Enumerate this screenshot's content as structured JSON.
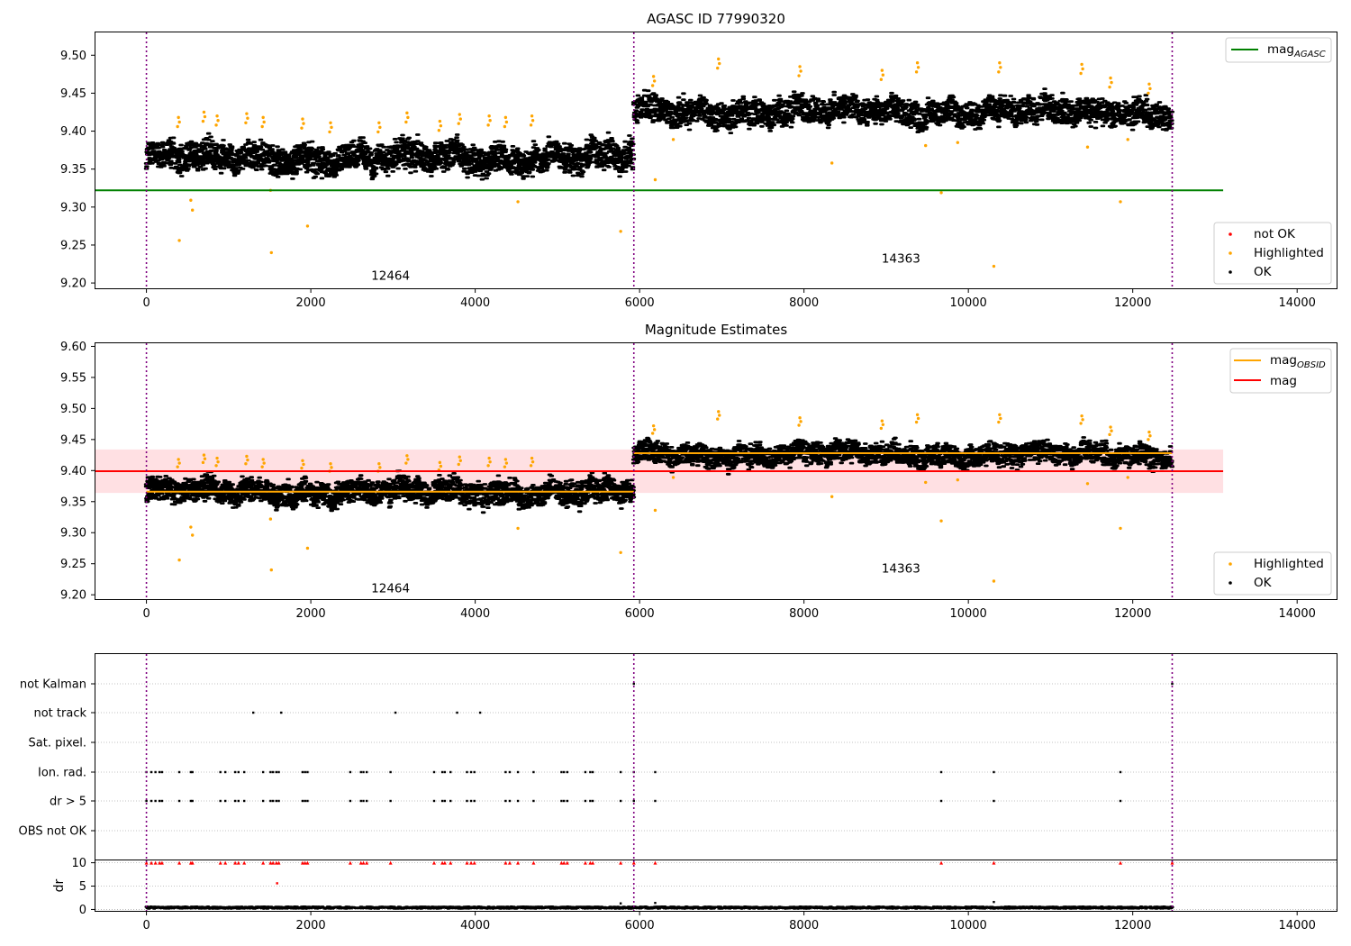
{
  "chart_data": [
    {
      "type": "scatter",
      "title": "AGASC ID 77990320",
      "xlim": [
        -620,
        14480
      ],
      "ylim": [
        9.193,
        9.53
      ],
      "xticks": [
        0,
        2000,
        4000,
        6000,
        8000,
        10000,
        12000,
        14000
      ],
      "xtick_labels": [
        "0",
        "2000",
        "4000",
        "6000",
        "8000",
        "10000",
        "12000",
        "14000"
      ],
      "yticks": [
        9.2,
        9.25,
        9.3,
        9.35,
        9.4,
        9.45,
        9.5
      ],
      "ytick_labels": [
        "9.20",
        "9.25",
        "9.30",
        "9.35",
        "9.40",
        "9.45",
        "9.50"
      ],
      "obs_boundaries": [
        0,
        5930,
        12480
      ],
      "obsid_labels": [
        {
          "text": "12464",
          "x": 2970,
          "y": 9.204
        },
        {
          "text": "14363",
          "x": 9180,
          "y": 9.227
        }
      ],
      "reference_lines": [
        {
          "name": "mag",
          "subscript": "AGASC",
          "y": 9.322,
          "x": [
            -620,
            13100
          ],
          "color": "#008000"
        }
      ],
      "segments": [
        {
          "x": [
            0,
            5930
          ],
          "center": 9.365,
          "amp": 0.022
        },
        {
          "x": [
            5930,
            12480
          ],
          "center": 9.426,
          "amp": 0.02
        }
      ],
      "highlighted_points": [
        [
          400,
          9.256
        ],
        [
          540,
          9.309
        ],
        [
          560,
          9.296
        ],
        [
          1510,
          9.322
        ],
        [
          1520,
          9.24
        ],
        [
          1960,
          9.275
        ],
        [
          4520,
          9.307
        ],
        [
          5770,
          9.268
        ],
        [
          6190,
          9.336
        ],
        [
          6410,
          9.389
        ],
        [
          8340,
          9.358
        ],
        [
          9480,
          9.381
        ],
        [
          9670,
          9.319
        ],
        [
          9870,
          9.385
        ],
        [
          10310,
          9.222
        ],
        [
          11450,
          9.379
        ],
        [
          11850,
          9.307
        ],
        [
          11940,
          9.389
        ],
        [
          390,
          9.418
        ],
        [
          700,
          9.425
        ],
        [
          860,
          9.42
        ],
        [
          1220,
          9.423
        ],
        [
          1420,
          9.418
        ],
        [
          1900,
          9.416
        ],
        [
          2240,
          9.411
        ],
        [
          2830,
          9.411
        ],
        [
          3170,
          9.424
        ],
        [
          3570,
          9.413
        ],
        [
          3810,
          9.422
        ],
        [
          4170,
          9.42
        ],
        [
          4370,
          9.418
        ],
        [
          4690,
          9.42
        ],
        [
          6170,
          9.472
        ],
        [
          6960,
          9.495
        ],
        [
          7950,
          9.485
        ],
        [
          8950,
          9.48
        ],
        [
          9380,
          9.49
        ],
        [
          10380,
          9.49
        ],
        [
          11380,
          9.488
        ],
        [
          11730,
          9.47
        ],
        [
          12200,
          9.462
        ]
      ],
      "legends": [
        {
          "position": "top-right",
          "entries": [
            {
              "label": "mag",
              "subscript": "AGASC",
              "kind": "line",
              "color": "#008000"
            }
          ]
        },
        {
          "position": "bottom-right",
          "entries": [
            {
              "label": "not OK",
              "kind": "marker",
              "color": "#ff0000"
            },
            {
              "label": "Highlighted",
              "kind": "marker",
              "color": "#ffa500"
            },
            {
              "label": "OK",
              "kind": "marker",
              "color": "#000000"
            }
          ]
        }
      ]
    },
    {
      "type": "scatter",
      "title": "Magnitude Estimates",
      "xlim": [
        -620,
        14480
      ],
      "ylim": [
        9.193,
        9.605
      ],
      "xticks": [
        0,
        2000,
        4000,
        6000,
        8000,
        10000,
        12000,
        14000
      ],
      "xtick_labels": [
        "0",
        "2000",
        "4000",
        "6000",
        "8000",
        "10000",
        "12000",
        "14000"
      ],
      "yticks": [
        9.2,
        9.25,
        9.3,
        9.35,
        9.4,
        9.45,
        9.5,
        9.55,
        9.6
      ],
      "ytick_labels": [
        "9.20",
        "9.25",
        "9.30",
        "9.35",
        "9.40",
        "9.45",
        "9.50",
        "9.55",
        "9.60"
      ],
      "obs_boundaries": [
        0,
        5930,
        12480
      ],
      "obsid_labels": [
        {
          "text": "12464",
          "x": 2970,
          "y": 9.204
        },
        {
          "text": "14363",
          "x": 9180,
          "y": 9.236
        }
      ],
      "reference_lines": [
        {
          "name": "mag",
          "y": 9.399,
          "x": [
            -620,
            13100
          ],
          "color": "#ff0000"
        }
      ],
      "mag_band": {
        "y": [
          9.364,
          9.434
        ],
        "x": [
          -620,
          13100
        ],
        "color": "#ffe0e3"
      },
      "obsid_mags": [
        {
          "name": "mag",
          "subscript": "OBSID",
          "x": [
            0,
            5930
          ],
          "y": 9.366,
          "color": "#ffa500"
        },
        {
          "x": [
            5930,
            12480
          ],
          "y": 9.428,
          "color": "#ffa500"
        }
      ],
      "segments": [
        {
          "x": [
            0,
            5930
          ],
          "center": 9.365,
          "amp": 0.022
        },
        {
          "x": [
            5930,
            12480
          ],
          "center": 9.426,
          "amp": 0.02
        }
      ],
      "highlighted_points": [
        [
          400,
          9.256
        ],
        [
          540,
          9.309
        ],
        [
          560,
          9.296
        ],
        [
          1510,
          9.322
        ],
        [
          1520,
          9.24
        ],
        [
          1960,
          9.275
        ],
        [
          4520,
          9.307
        ],
        [
          5770,
          9.268
        ],
        [
          6190,
          9.336
        ],
        [
          6410,
          9.389
        ],
        [
          8340,
          9.358
        ],
        [
          9480,
          9.381
        ],
        [
          9670,
          9.319
        ],
        [
          9870,
          9.385
        ],
        [
          10310,
          9.222
        ],
        [
          11450,
          9.379
        ],
        [
          11850,
          9.307
        ],
        [
          11940,
          9.389
        ],
        [
          390,
          9.418
        ],
        [
          700,
          9.425
        ],
        [
          860,
          9.42
        ],
        [
          1220,
          9.423
        ],
        [
          1420,
          9.418
        ],
        [
          1900,
          9.416
        ],
        [
          2240,
          9.411
        ],
        [
          2830,
          9.411
        ],
        [
          3170,
          9.424
        ],
        [
          3570,
          9.413
        ],
        [
          3810,
          9.422
        ],
        [
          4170,
          9.42
        ],
        [
          4370,
          9.418
        ],
        [
          4690,
          9.42
        ],
        [
          6170,
          9.472
        ],
        [
          6960,
          9.495
        ],
        [
          7950,
          9.485
        ],
        [
          8950,
          9.48
        ],
        [
          9380,
          9.49
        ],
        [
          10380,
          9.49
        ],
        [
          11380,
          9.488
        ],
        [
          11730,
          9.47
        ],
        [
          12200,
          9.462
        ]
      ],
      "legends": [
        {
          "position": "top-right",
          "entries": [
            {
              "label": "mag",
              "subscript": "OBSID",
              "kind": "line",
              "color": "#ffa500"
            },
            {
              "label": "mag",
              "kind": "line",
              "color": "#ff0000"
            }
          ]
        },
        {
          "position": "bottom-right",
          "entries": [
            {
              "label": "Highlighted",
              "kind": "marker",
              "color": "#ffa500"
            },
            {
              "label": "OK",
              "kind": "marker",
              "color": "#000000"
            }
          ]
        }
      ]
    },
    {
      "type": "scatter",
      "xlim": [
        -620,
        14480
      ],
      "yticks_flags": [
        "not Kalman",
        "not track",
        "Sat. pixel.",
        "Ion. rad.",
        "dr > 5",
        "OBS not OK"
      ],
      "grid": "horizontal dotted",
      "obs_boundaries": [
        0,
        5930,
        12480
      ],
      "flags": {
        "not Kalman": [
          5930,
          12480
        ],
        "not track": [
          1300,
          1640,
          3030,
          3780,
          4060
        ],
        "Sat. pixel.": [],
        "Ion. rad.": [
          0,
          60,
          110,
          160,
          190,
          400,
          540,
          560,
          900,
          960,
          1080,
          1120,
          1190,
          1420,
          1510,
          1540,
          1580,
          1610,
          1900,
          1930,
          1960,
          2480,
          2610,
          2640,
          2680,
          2970,
          3500,
          3600,
          3630,
          3700,
          3900,
          3950,
          3990,
          4370,
          4420,
          4520,
          4710,
          5050,
          5080,
          5120,
          5340,
          5400,
          5430,
          5770,
          5930,
          6190,
          9670,
          10310,
          11850
        ],
        "dr > 5": [
          0,
          60,
          110,
          160,
          190,
          400,
          540,
          560,
          900,
          960,
          1080,
          1120,
          1190,
          1420,
          1510,
          1540,
          1580,
          1610,
          1900,
          1930,
          1960,
          2480,
          2610,
          2640,
          2680,
          2970,
          3500,
          3600,
          3630,
          3700,
          3900,
          3950,
          3990,
          4370,
          4420,
          4520,
          4710,
          5050,
          5080,
          5120,
          5340,
          5400,
          5430,
          5770,
          5930,
          6190,
          9670,
          10310,
          11850
        ],
        "OBS not OK": []
      }
    },
    {
      "type": "scatter",
      "xlim": [
        -620,
        14480
      ],
      "ylim": [
        -0.3,
        10.5
      ],
      "ylabel": "dr",
      "yticks": [
        0,
        5,
        10
      ],
      "ytick_labels": [
        "0",
        "5",
        "10"
      ],
      "xticks": [
        0,
        2000,
        4000,
        6000,
        8000,
        10000,
        12000,
        14000
      ],
      "xtick_labels": [
        "0",
        "2000",
        "4000",
        "6000",
        "8000",
        "10000",
        "12000",
        "14000"
      ],
      "obs_boundaries": [
        0,
        5930,
        12480
      ],
      "baseline_dr": 0.4,
      "clipped_points_dr": 10,
      "clipped_x": [
        0,
        60,
        110,
        160,
        190,
        400,
        540,
        560,
        900,
        960,
        1080,
        1120,
        1190,
        1420,
        1510,
        1540,
        1580,
        1610,
        1900,
        1930,
        1960,
        2480,
        2610,
        2640,
        2680,
        2970,
        3500,
        3600,
        3630,
        3700,
        3900,
        3950,
        3990,
        4370,
        4420,
        4520,
        4710,
        5050,
        5080,
        5120,
        5340,
        5400,
        5430,
        5770,
        5930,
        6190,
        9670,
        10310,
        11850,
        12480
      ],
      "other_points": [
        [
          1590,
          5.6
        ],
        [
          10310,
          1.6
        ],
        [
          6190,
          1.4
        ],
        [
          5770,
          1.3
        ]
      ]
    }
  ]
}
